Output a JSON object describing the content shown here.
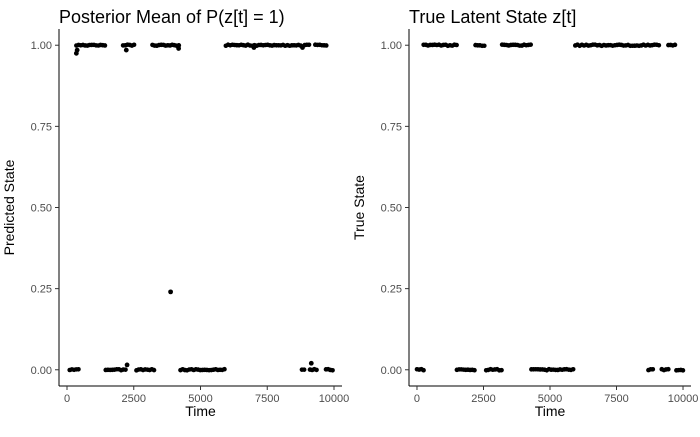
{
  "chart_data": [
    {
      "type": "scatter",
      "title": "Posterior Mean of P(z[t] = 1)",
      "xlabel": "Time",
      "ylabel": "Predicted State",
      "xlim": [
        -300,
        10300
      ],
      "ylim": [
        -0.05,
        1.05
      ],
      "xticks": [
        0,
        2500,
        5000,
        7500,
        10000
      ],
      "yticks": [
        0.0,
        0.25,
        0.5,
        0.75,
        1.0
      ],
      "ytick_labels": [
        "0.00",
        "0.25",
        "0.50",
        "0.75",
        "1.00"
      ],
      "grid": false,
      "legend": "none",
      "point_color": "#000000",
      "segments": [
        {
          "value": 0,
          "start": 100,
          "end": 450
        },
        {
          "value": 1,
          "start": 350,
          "end": 1450
        },
        {
          "value": 0,
          "start": 1450,
          "end": 2250
        },
        {
          "value": 1,
          "start": 2100,
          "end": 2550
        },
        {
          "value": 0,
          "start": 2600,
          "end": 3300
        },
        {
          "value": 1,
          "start": 3200,
          "end": 4250
        },
        {
          "value": 0,
          "start": 4250,
          "end": 5950
        },
        {
          "value": 1,
          "start": 5950,
          "end": 8800
        },
        {
          "value": 0,
          "start": 8800,
          "end": 8950
        },
        {
          "value": 1,
          "start": 8900,
          "end": 9100
        },
        {
          "value": 0,
          "start": 9100,
          "end": 9400
        },
        {
          "value": 1,
          "start": 9300,
          "end": 9750
        },
        {
          "value": 0,
          "start": 9700,
          "end": 10000
        }
      ],
      "points": [
        {
          "x": 350,
          "y": 0.975
        },
        {
          "x": 380,
          "y": 0.985
        },
        {
          "x": 2220,
          "y": 0.985
        },
        {
          "x": 2250,
          "y": 0.015
        },
        {
          "x": 3880,
          "y": 0.24
        },
        {
          "x": 4180,
          "y": 0.99
        },
        {
          "x": 7000,
          "y": 0.993
        },
        {
          "x": 8820,
          "y": 0.993
        },
        {
          "x": 9150,
          "y": 0.02
        }
      ]
    },
    {
      "type": "scatter",
      "title": "True Latent State z[t]",
      "xlabel": "Time",
      "ylabel": "True State",
      "xlim": [
        -300,
        10300
      ],
      "ylim": [
        -0.05,
        1.05
      ],
      "xticks": [
        0,
        2500,
        5000,
        7500,
        10000
      ],
      "yticks": [
        0.0,
        0.25,
        0.5,
        0.75,
        1.0
      ],
      "ytick_labels": [
        "0.00",
        "0.25",
        "0.50",
        "0.75",
        "1.00"
      ],
      "grid": false,
      "legend": "none",
      "point_color": "#000000",
      "segments": [
        {
          "value": 0,
          "start": 0,
          "end": 250
        },
        {
          "value": 1,
          "start": 250,
          "end": 1500
        },
        {
          "value": 0,
          "start": 1500,
          "end": 2200
        },
        {
          "value": 1,
          "start": 2200,
          "end": 2600
        },
        {
          "value": 0,
          "start": 2600,
          "end": 3200
        },
        {
          "value": 1,
          "start": 3200,
          "end": 4300
        },
        {
          "value": 0,
          "start": 4300,
          "end": 5950
        },
        {
          "value": 1,
          "start": 5950,
          "end": 9100
        },
        {
          "value": 0,
          "start": 8700,
          "end": 8900
        },
        {
          "value": 0,
          "start": 9200,
          "end": 9450
        },
        {
          "value": 1,
          "start": 9450,
          "end": 9750
        },
        {
          "value": 0,
          "start": 9750,
          "end": 10000
        }
      ],
      "points": []
    }
  ]
}
